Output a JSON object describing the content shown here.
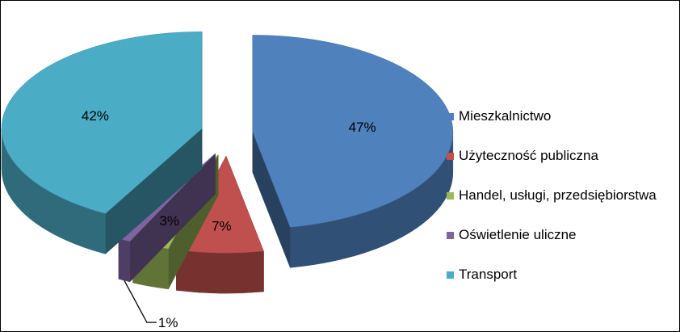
{
  "chart_data": {
    "type": "pie",
    "title": "",
    "categories": [
      "Mieszkalnictwo",
      "Użyteczność publiczna",
      "Handel, usługi, przedsiębiorstwa",
      "Oświetlenie uliczne",
      "Transport"
    ],
    "values": [
      47,
      7,
      3,
      1,
      42
    ],
    "data_labels": [
      "47%",
      "7%",
      "3%",
      "1%",
      "42%"
    ],
    "colors": [
      "#4F81BD",
      "#C0504D",
      "#9BBB59",
      "#8064A2",
      "#4BACC6"
    ],
    "style": "3d-exploded",
    "legend": "right"
  }
}
